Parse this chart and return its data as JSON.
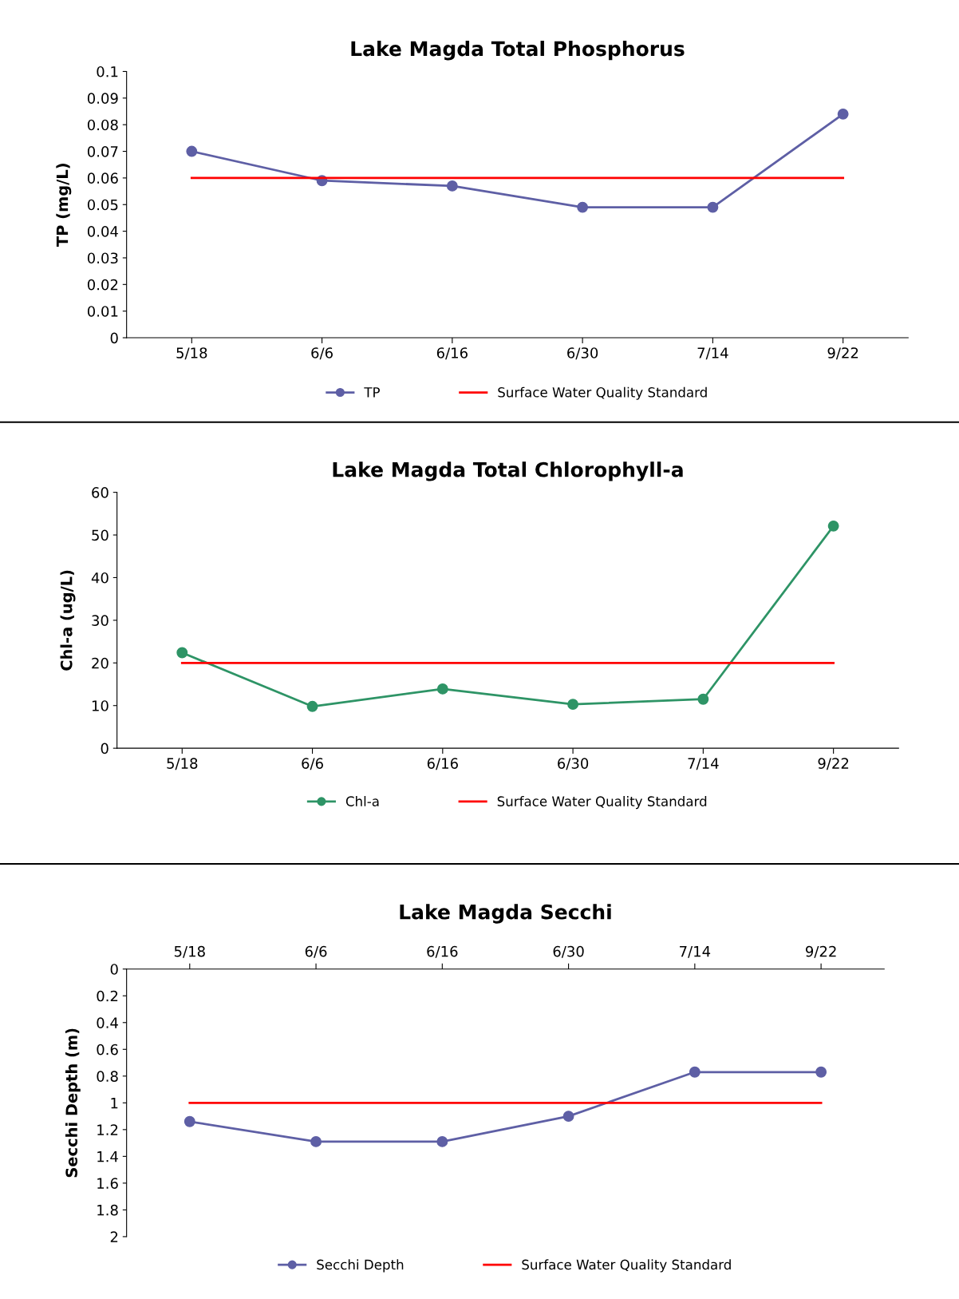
{
  "chart_data": [
    {
      "type": "line",
      "title": "Lake Magda Total Phosphorus",
      "ylabel": "TP (mg/L)",
      "categories": [
        "5/18",
        "6/6",
        "6/16",
        "6/30",
        "7/14",
        "9/22"
      ],
      "series": [
        {
          "name": "TP",
          "color": "#5e5fa5",
          "marker": "circle",
          "values": [
            0.07,
            0.059,
            0.057,
            0.049,
            0.049,
            0.084
          ]
        },
        {
          "name": "Surface Water Quality Standard",
          "color": "#ff0000",
          "marker": "none",
          "values": [
            0.06,
            0.06,
            0.06,
            0.06,
            0.06,
            0.06
          ]
        }
      ],
      "ylim": [
        0,
        0.1
      ],
      "yticks": [
        0,
        0.01,
        0.02,
        0.03,
        0.04,
        0.05,
        0.06,
        0.07,
        0.08,
        0.09,
        0.1
      ],
      "grid": false,
      "legend": "bottom"
    },
    {
      "type": "line",
      "title": "Lake Magda Total Chlorophyll-a",
      "ylabel": "Chl-a (ug/L)",
      "categories": [
        "5/18",
        "6/6",
        "6/16",
        "6/30",
        "7/14",
        "9/22"
      ],
      "series": [
        {
          "name": "Chl-a",
          "color": "#2e9466",
          "marker": "circle",
          "values": [
            22.4,
            9.8,
            13.9,
            10.3,
            11.5,
            52.1
          ]
        },
        {
          "name": "Surface Water Quality Standard",
          "color": "#ff0000",
          "marker": "none",
          "values": [
            20,
            20,
            20,
            20,
            20,
            20
          ]
        }
      ],
      "ylim": [
        0,
        60
      ],
      "yticks": [
        0,
        10,
        20,
        30,
        40,
        50,
        60
      ],
      "grid": false,
      "legend": "bottom"
    },
    {
      "type": "line",
      "title": "Lake Magda Secchi",
      "ylabel": "Secchi Depth (m)",
      "categories": [
        "5/18",
        "6/6",
        "6/16",
        "6/30",
        "7/14",
        "9/22"
      ],
      "series": [
        {
          "name": "Secchi Depth",
          "color": "#5e5fa5",
          "marker": "circle",
          "values": [
            1.14,
            1.29,
            1.29,
            1.1,
            0.77,
            0.77
          ]
        },
        {
          "name": "Surface Water Quality Standard",
          "color": "#ff0000",
          "marker": "none",
          "values": [
            1,
            1,
            1,
            1,
            1,
            1
          ]
        }
      ],
      "ylim": [
        2,
        0
      ],
      "yticks": [
        0,
        0.2,
        0.4,
        0.6,
        0.8,
        1,
        1.2,
        1.4,
        1.6,
        1.8,
        2
      ],
      "grid": false,
      "legend": "bottom"
    }
  ]
}
